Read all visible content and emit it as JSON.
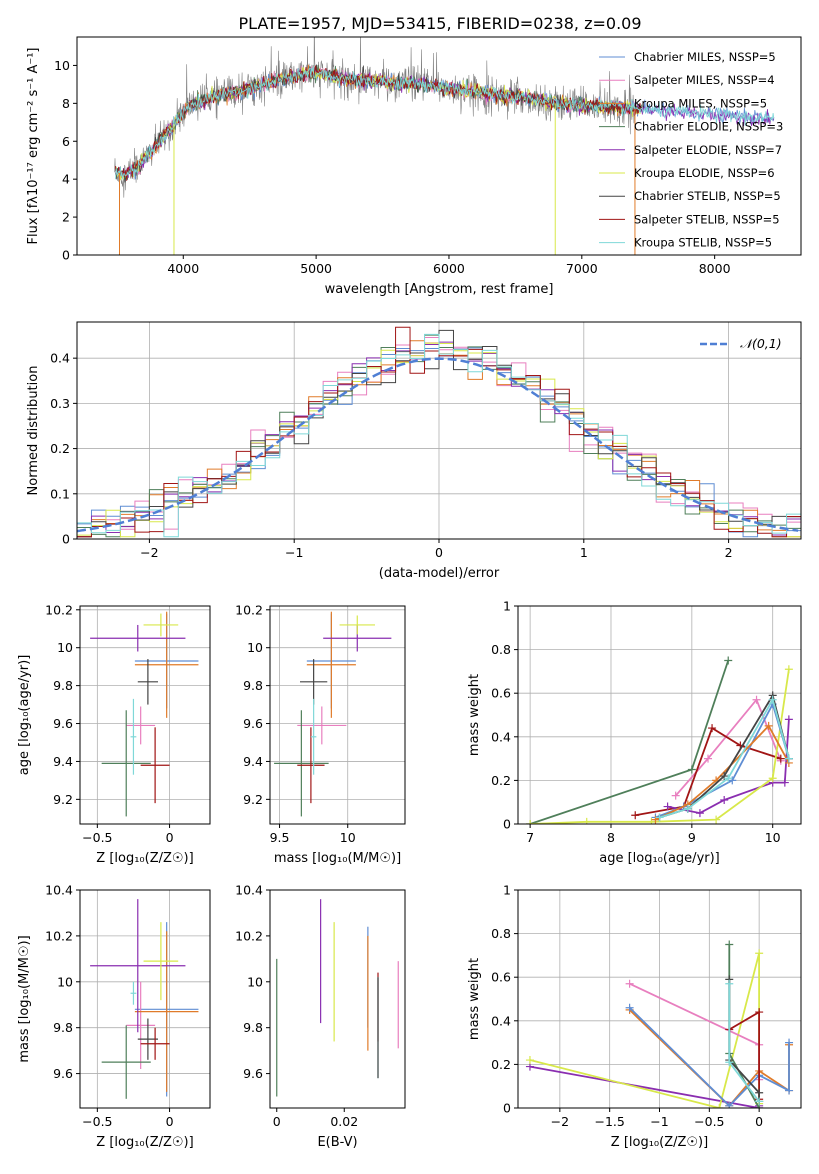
{
  "title": "PLATE=1957, MJD=53415, FIBERID=0238, z=0.09",
  "chart_data": [
    {
      "id": "spectrum",
      "type": "line",
      "xlabel": "wavelength [Angstrom, rest frame]",
      "ylabel": "Flux [fλ10⁻¹⁷ erg cm⁻² s⁻¹ A⁻¹]",
      "xlim": [
        3200,
        8650
      ],
      "ylim": [
        0,
        11.5
      ],
      "xticks": [
        4000,
        5000,
        6000,
        7000,
        8000
      ],
      "yticks": [
        0,
        2,
        4,
        6,
        8,
        10
      ],
      "grid": false,
      "legend_position": "right",
      "series": [
        {
          "name": "Chabrier MILES, NSSP=5",
          "color": "#5f8dd3"
        },
        {
          "name": "Salpeter MILES, NSSP=4",
          "color": "#e87fbf"
        },
        {
          "name": "Kroupa MILES, NSSP=5",
          "color": "#e07b2a"
        },
        {
          "name": "Chabrier ELODIE, NSSP=3",
          "color": "#4f7f5a"
        },
        {
          "name": "Salpeter ELODIE, NSSP=7",
          "color": "#8a2eb0"
        },
        {
          "name": "Kroupa ELODIE, NSSP=6",
          "color": "#d8e84a"
        },
        {
          "name": "Chabrier STELIB, NSSP=5",
          "color": "#444444"
        },
        {
          "name": "Salpeter STELIB, NSSP=5",
          "color": "#a11515"
        },
        {
          "name": "Kroupa STELIB, NSSP=5",
          "color": "#7fd8d8"
        }
      ],
      "observed_color": "#808080",
      "continuum": [
        [
          3480,
          4.5
        ],
        [
          3550,
          4.2
        ],
        [
          3650,
          4.6
        ],
        [
          3750,
          5.4
        ],
        [
          3850,
          6.2
        ],
        [
          3950,
          7.1
        ],
        [
          4050,
          7.9
        ],
        [
          4200,
          8.3
        ],
        [
          4400,
          8.6
        ],
        [
          4600,
          9.0
        ],
        [
          4800,
          9.4
        ],
        [
          5000,
          9.6
        ],
        [
          5200,
          9.3
        ],
        [
          5400,
          9.2
        ],
        [
          5600,
          9.1
        ],
        [
          5800,
          9.0
        ],
        [
          6000,
          8.8
        ],
        [
          6200,
          8.6
        ],
        [
          6400,
          8.4
        ],
        [
          6600,
          8.3
        ],
        [
          6800,
          8.0
        ],
        [
          7000,
          7.9
        ],
        [
          7200,
          7.8
        ],
        [
          7400,
          7.7
        ],
        [
          7600,
          7.6
        ],
        [
          7800,
          7.5
        ],
        [
          8000,
          7.4
        ],
        [
          8200,
          7.3
        ],
        [
          8400,
          7.2
        ]
      ]
    },
    {
      "id": "residuals",
      "type": "bar",
      "xlabel": "(data-model)/error",
      "ylabel": "Normed distribution",
      "xlim": [
        -2.5,
        2.5
      ],
      "ylim": [
        0,
        0.48
      ],
      "xticks": [
        -2,
        -1,
        0,
        1,
        2
      ],
      "yticks": [
        0.0,
        0.1,
        0.2,
        0.3,
        0.4
      ],
      "grid": true,
      "legend_position": "top-right",
      "legend": "𝒩(0,1)",
      "bin_width": 0.1,
      "normal_curve": {
        "mean": 0,
        "std": 1,
        "color": "#4f7fd4"
      }
    },
    {
      "id": "age-vs-Z",
      "type": "scatter",
      "xlabel": "Z [log₁₀(Z/Z☉)]",
      "ylabel": "age  [log₁₀(age/yr)]",
      "xlim": [
        -0.62,
        0.28
      ],
      "ylim": [
        9.07,
        10.22
      ],
      "xticks": [
        -0.5,
        0.0
      ],
      "yticks": [
        9.2,
        9.4,
        9.6,
        9.8,
        10.0,
        10.2
      ],
      "grid": true,
      "errorbars": [
        {
          "color": "#5f8dd3",
          "x": -0.02,
          "y": 9.93,
          "xerr": 0.22,
          "yerr": 0.25
        },
        {
          "color": "#e87fbf",
          "x": -0.2,
          "y": 9.59,
          "xerr": 0.1,
          "yerr": 0.1
        },
        {
          "color": "#e07b2a",
          "x": -0.02,
          "y": 9.91,
          "xerr": 0.22,
          "yerr": 0.28
        },
        {
          "color": "#4f7f5a",
          "x": -0.3,
          "y": 9.39,
          "xerr": 0.17,
          "yerr": 0.28
        },
        {
          "color": "#8a2eb0",
          "x": -0.22,
          "y": 10.05,
          "xerr": 0.33,
          "yerr": 0.07
        },
        {
          "color": "#d8e84a",
          "x": -0.06,
          "y": 10.12,
          "xerr": 0.12,
          "yerr": 0.06
        },
        {
          "color": "#444444",
          "x": -0.15,
          "y": 9.82,
          "xerr": 0.07,
          "yerr": 0.12
        },
        {
          "color": "#a11515",
          "x": -0.1,
          "y": 9.38,
          "xerr": 0.1,
          "yerr": 0.2
        },
        {
          "color": "#7fd8d8",
          "x": -0.25,
          "y": 9.53,
          "xerr": 0.02,
          "yerr": 0.2
        }
      ]
    },
    {
      "id": "age-vs-mass",
      "type": "scatter",
      "xlabel": "mass [log₁₀(M/M☉)]",
      "ylabel": "",
      "xlim": [
        9.43,
        10.42
      ],
      "ylim": [
        9.07,
        10.22
      ],
      "xticks": [
        9.5,
        10.0
      ],
      "yticks": [
        9.2,
        9.4,
        9.6,
        9.8,
        10.0,
        10.2
      ],
      "grid": true,
      "errorbars": [
        {
          "color": "#5f8dd3",
          "x": 9.88,
          "y": 9.93,
          "xerr": 0.18,
          "yerr": 0.25
        },
        {
          "color": "#e87fbf",
          "x": 9.81,
          "y": 9.59,
          "xerr": 0.18,
          "yerr": 0.1
        },
        {
          "color": "#e07b2a",
          "x": 9.88,
          "y": 9.91,
          "xerr": 0.18,
          "yerr": 0.28
        },
        {
          "color": "#4f7f5a",
          "x": 9.66,
          "y": 9.39,
          "xerr": 0.2,
          "yerr": 0.28
        },
        {
          "color": "#8a2eb0",
          "x": 10.07,
          "y": 10.05,
          "xerr": 0.25,
          "yerr": 0.07
        },
        {
          "color": "#d8e84a",
          "x": 10.07,
          "y": 10.12,
          "xerr": 0.13,
          "yerr": 0.05
        },
        {
          "color": "#444444",
          "x": 9.75,
          "y": 9.82,
          "xerr": 0.1,
          "yerr": 0.12
        },
        {
          "color": "#a11515",
          "x": 9.73,
          "y": 9.38,
          "xerr": 0.1,
          "yerr": 0.2
        },
        {
          "color": "#7fd8d8",
          "x": 9.75,
          "y": 9.53,
          "xerr": 0.02,
          "yerr": 0.2
        }
      ]
    },
    {
      "id": "massweight-vs-age",
      "type": "line",
      "xlabel": "age  [log₁₀(age/yr)]",
      "ylabel": "mass weight",
      "xlim": [
        6.85,
        10.35
      ],
      "ylim": [
        0,
        1
      ],
      "xticks": [
        7,
        8,
        9,
        10
      ],
      "yticks": [
        0.0,
        0.2,
        0.4,
        0.6,
        0.8,
        1.0
      ],
      "grid": true,
      "series": [
        {
          "color": "#4f7f5a",
          "x": [
            7.0,
            9.0,
            9.45
          ],
          "y": [
            0.0,
            0.25,
            0.75
          ]
        },
        {
          "color": "#e87fbf",
          "x": [
            8.8,
            9.2,
            9.8,
            10.1
          ],
          "y": [
            0.13,
            0.3,
            0.57,
            0.29
          ]
        },
        {
          "color": "#a11515",
          "x": [
            8.3,
            8.9,
            9.25,
            9.6,
            10.1
          ],
          "y": [
            0.04,
            0.08,
            0.44,
            0.36,
            0.3
          ]
        },
        {
          "color": "#8a2eb0",
          "x": [
            8.7,
            9.1,
            9.4,
            10.0,
            10.15,
            10.2
          ],
          "y": [
            0.08,
            0.05,
            0.11,
            0.19,
            0.19,
            0.48
          ]
        },
        {
          "color": "#d8e84a",
          "x": [
            7.0,
            7.7,
            8.5,
            9.3,
            10.0,
            10.2
          ],
          "y": [
            0.0,
            0.01,
            0.01,
            0.02,
            0.21,
            0.71
          ]
        },
        {
          "color": "#5f8dd3",
          "x": [
            8.55,
            8.9,
            9.5,
            10.0,
            10.2
          ],
          "y": [
            0.03,
            0.08,
            0.2,
            0.55,
            0.3
          ]
        },
        {
          "color": "#e07b2a",
          "x": [
            8.55,
            8.95,
            9.3,
            9.95,
            10.2
          ],
          "y": [
            0.02,
            0.09,
            0.2,
            0.45,
            0.28
          ]
        },
        {
          "color": "#444444",
          "x": [
            8.6,
            8.95,
            9.4,
            10.0,
            10.2
          ],
          "y": [
            0.03,
            0.07,
            0.22,
            0.59,
            0.3
          ]
        },
        {
          "color": "#7fd8d8",
          "x": [
            8.6,
            8.95,
            9.45,
            10.0,
            10.2
          ],
          "y": [
            0.03,
            0.07,
            0.21,
            0.57,
            0.3
          ]
        }
      ]
    },
    {
      "id": "mass-vs-Z",
      "type": "scatter",
      "xlabel": "Z [log₁₀(Z/Z☉)]",
      "ylabel": "mass [log₁₀(M/M☉)]",
      "xlim": [
        -0.62,
        0.28
      ],
      "ylim": [
        9.45,
        10.4
      ],
      "xticks": [
        -0.5,
        0.0
      ],
      "yticks": [
        9.6,
        9.8,
        10.0,
        10.2,
        10.4
      ],
      "grid": true,
      "errorbars": [
        {
          "color": "#5f8dd3",
          "x": -0.02,
          "y": 9.88,
          "xerr": 0.22,
          "yerr": 0.38
        },
        {
          "color": "#e87fbf",
          "x": -0.2,
          "y": 9.81,
          "xerr": 0.1,
          "yerr": 0.19
        },
        {
          "color": "#e07b2a",
          "x": -0.02,
          "y": 9.87,
          "xerr": 0.22,
          "yerr": 0.35
        },
        {
          "color": "#4f7f5a",
          "x": -0.3,
          "y": 9.65,
          "xerr": 0.17,
          "yerr": 0.16
        },
        {
          "color": "#8a2eb0",
          "x": -0.22,
          "y": 10.07,
          "xerr": 0.33,
          "yerr": 0.29
        },
        {
          "color": "#d8e84a",
          "x": -0.06,
          "y": 10.09,
          "xerr": 0.12,
          "yerr": 0.17
        },
        {
          "color": "#444444",
          "x": -0.15,
          "y": 9.75,
          "xerr": 0.07,
          "yerr": 0.09
        },
        {
          "color": "#a11515",
          "x": -0.1,
          "y": 9.73,
          "xerr": 0.1,
          "yerr": 0.07
        },
        {
          "color": "#7fd8d8",
          "x": -0.25,
          "y": 9.95,
          "xerr": 0.02,
          "yerr": 0.05
        }
      ]
    },
    {
      "id": "mass-vs-ebv",
      "type": "scatter",
      "xlabel": "E(B-V)",
      "ylabel": "",
      "xlim": [
        -0.002,
        0.038
      ],
      "ylim": [
        9.45,
        10.4
      ],
      "xticks": [
        0.0,
        0.02
      ],
      "yticks": [
        9.6,
        9.8,
        10.0,
        10.2,
        10.4
      ],
      "grid": false,
      "errorbars": [
        {
          "color": "#4f7f5a",
          "x": 0.0,
          "y": 9.8,
          "yerr": 0.3
        },
        {
          "color": "#8a2eb0",
          "x": 0.013,
          "y": 10.09,
          "yerr": 0.27
        },
        {
          "color": "#d8e84a",
          "x": 0.017,
          "y": 10.0,
          "yerr": 0.26
        },
        {
          "color": "#5f8dd3",
          "x": 0.027,
          "y": 10.02,
          "yerr": 0.22
        },
        {
          "color": "#e07b2a",
          "x": 0.027,
          "y": 9.95,
          "yerr": 0.25
        },
        {
          "color": "#a11515",
          "x": 0.03,
          "y": 9.89,
          "yerr": 0.15
        },
        {
          "color": "#7fd8d8",
          "x": 0.03,
          "y": 9.8,
          "yerr": 0.22
        },
        {
          "color": "#444444",
          "x": 0.03,
          "y": 9.8,
          "yerr": 0.22
        },
        {
          "color": "#e87fbf",
          "x": 0.036,
          "y": 9.9,
          "yerr": 0.19
        }
      ]
    },
    {
      "id": "massweight-vs-Z",
      "type": "line",
      "xlabel": "Z [log₁₀(Z/Z☉)]",
      "ylabel": "mass weight",
      "xlim": [
        -2.42,
        0.42
      ],
      "ylim": [
        0,
        1
      ],
      "xticks": [
        -2.0,
        -1.5,
        -1.0,
        -0.5,
        0.0
      ],
      "yticks": [
        0.0,
        0.2,
        0.4,
        0.6,
        0.8,
        1.0
      ],
      "grid": true,
      "series": [
        {
          "color": "#8a2eb0",
          "x": [
            -2.3,
            0.0,
            0.0
          ],
          "y": [
            0.19,
            0.0,
            0.01
          ]
        },
        {
          "color": "#d8e84a",
          "x": [
            -2.3,
            -0.4,
            0.0,
            0.0
          ],
          "y": [
            0.22,
            0.0,
            0.71,
            0.02
          ]
        },
        {
          "color": "#e87fbf",
          "x": [
            -1.3,
            0.0,
            0.0
          ],
          "y": [
            0.57,
            0.29,
            0.13
          ]
        },
        {
          "color": "#e07b2a",
          "x": [
            -1.3,
            -0.3,
            0.0,
            0.3,
            0.3
          ],
          "y": [
            0.45,
            0.01,
            0.17,
            0.08,
            0.29
          ]
        },
        {
          "color": "#5f8dd3",
          "x": [
            -1.3,
            -0.3,
            0.0,
            0.3,
            0.3
          ],
          "y": [
            0.46,
            0.01,
            0.15,
            0.08,
            0.3
          ]
        },
        {
          "color": "#4f7f5a",
          "x": [
            -0.3,
            -0.3,
            0.0
          ],
          "y": [
            0.75,
            0.25,
            0.0
          ]
        },
        {
          "color": "#a11515",
          "x": [
            -0.3,
            0.0,
            0.0
          ],
          "y": [
            0.36,
            0.44,
            0.04
          ]
        },
        {
          "color": "#444444",
          "x": [
            -0.3,
            -0.3,
            0.0,
            0.0
          ],
          "y": [
            0.59,
            0.22,
            0.07,
            0.03
          ]
        },
        {
          "color": "#7fd8d8",
          "x": [
            -0.3,
            -0.3,
            0.0
          ],
          "y": [
            0.57,
            0.21,
            0.03
          ]
        }
      ]
    }
  ]
}
